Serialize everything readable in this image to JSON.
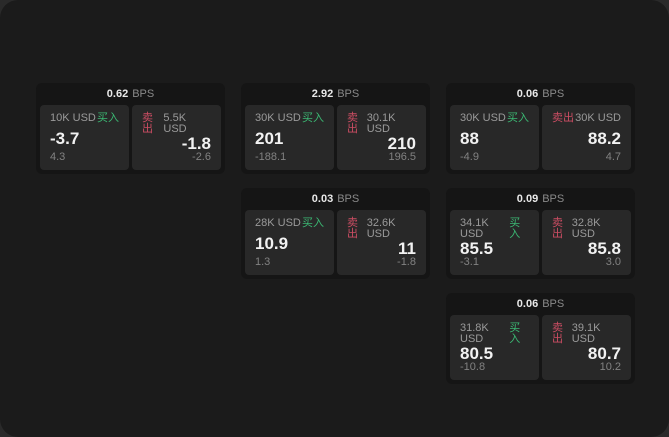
{
  "labels": {
    "buy": "买入",
    "sell": "卖出",
    "bps": "BPS"
  },
  "colors": {
    "backdrop": "#2a2a2a",
    "window_bg": "#1b1b1b",
    "card_bg": "#151515",
    "tile_bg": "#282828",
    "buy_green": "#3bb873",
    "sell_red": "#cc4d63",
    "primary_text": "#f2f2f2",
    "muted_text": "#8a8a8a"
  },
  "cards": [
    {
      "bps": "0.62",
      "buy": {
        "amount": "10K USD",
        "value": "-3.7",
        "delta": "4.3"
      },
      "sell": {
        "amount": "5.5K USD",
        "value": "-1.8",
        "delta": "-2.6"
      }
    },
    {
      "bps": "2.92",
      "buy": {
        "amount": "30K USD",
        "value": "201",
        "delta": "-188.1"
      },
      "sell": {
        "amount": "30.1K USD",
        "value": "210",
        "delta": "196.5"
      }
    },
    {
      "bps": "0.06",
      "buy": {
        "amount": "30K USD",
        "value": "88",
        "delta": "-4.9"
      },
      "sell": {
        "amount": "30K USD",
        "value": "88.2",
        "delta": "4.7"
      }
    },
    {
      "bps": "0.03",
      "buy": {
        "amount": "28K USD",
        "value": "10.9",
        "delta": "1.3"
      },
      "sell": {
        "amount": "32.6K USD",
        "value": "11",
        "delta": "-1.8"
      }
    },
    {
      "bps": "0.09",
      "buy": {
        "amount": "34.1K USD",
        "value": "85.5",
        "delta": "-3.1"
      },
      "sell": {
        "amount": "32.8K USD",
        "value": "85.8",
        "delta": "3.0"
      }
    },
    {
      "bps": "0.06",
      "buy": {
        "amount": "31.8K USD",
        "value": "80.5",
        "delta": "-10.8"
      },
      "sell": {
        "amount": "39.1K USD",
        "value": "80.7",
        "delta": "10.2"
      }
    }
  ]
}
